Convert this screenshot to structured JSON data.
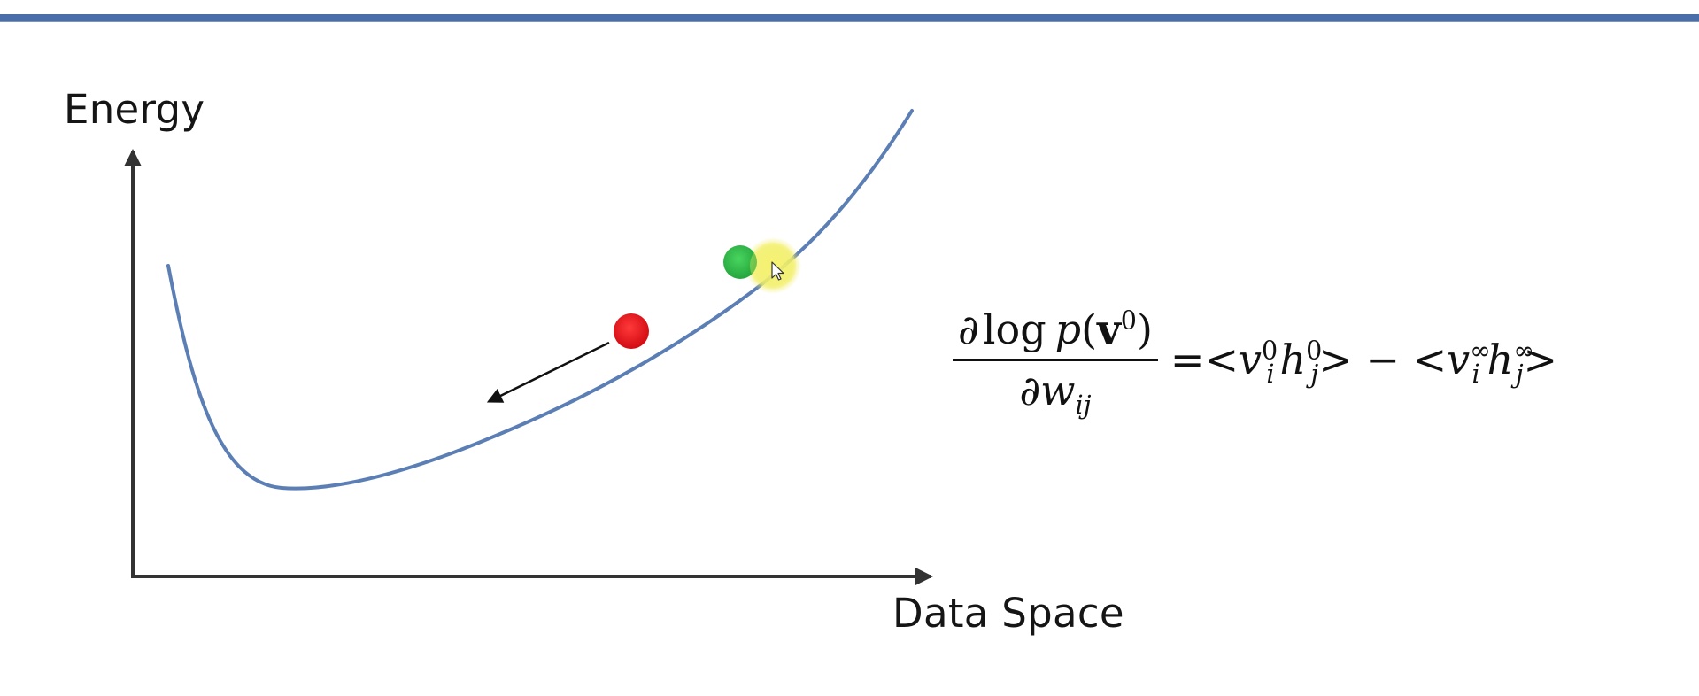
{
  "slide": {
    "y_axis_label": "Energy",
    "x_axis_label": "Data Space"
  },
  "formula": {
    "numerator": {
      "partial": "∂",
      "log": "log",
      "p": "p",
      "open": "(",
      "v": "v",
      "v_sup": "0",
      "close": ")"
    },
    "denominator": {
      "partial": "∂",
      "w": "w",
      "w_sub": "ij"
    },
    "rhs": {
      "eq": "=",
      "lt1": "<",
      "v1": "v",
      "v1_sup": "0",
      "v1_sub": "i",
      "h1": "h",
      "h1_sup": "0",
      "h1_sub": "j",
      "gt1": ">",
      "minus": " − ",
      "lt2": "<",
      "v2": "v",
      "v2_sup": "∞",
      "v2_sub": "i",
      "h2": "h",
      "h2_sup": "∞",
      "h2_sub": "j",
      "gt2": ">"
    }
  },
  "colors": {
    "curve": "#5b7fb5",
    "axis": "#333333",
    "red_ball": "#e2121c",
    "green_ball": "#22b43a",
    "cursor_highlight": "#f4f06a",
    "header_bar": "#4a6fa8"
  },
  "icons": {
    "cursor": "mouse-pointer-icon"
  }
}
